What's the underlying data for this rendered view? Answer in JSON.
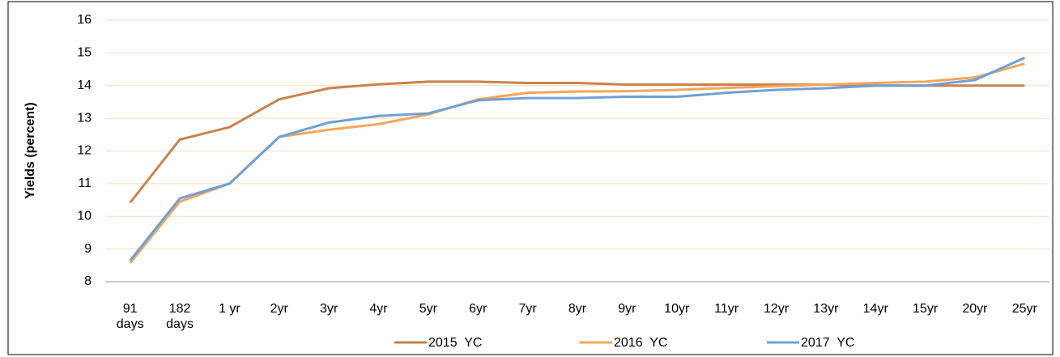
{
  "chart_data": {
    "type": "line",
    "y_label": "Yields (percent)",
    "categories": [
      "91 days",
      "182 days",
      "1 yr",
      "2yr",
      "3yr",
      "4yr",
      "5yr",
      "6yr",
      "7yr",
      "8yr",
      "9yr",
      "10yr",
      "11yr",
      "12yr",
      "13yr",
      "14yr",
      "15yr",
      "20yr",
      "25yr"
    ],
    "series": [
      {
        "name": "2015  YC",
        "color": "#c8834b",
        "values": [
          10.42,
          12.35,
          12.73,
          13.58,
          13.92,
          14.04,
          14.12,
          14.12,
          14.08,
          14.08,
          14.03,
          14.03,
          14.03,
          14.03,
          14.03,
          14.0,
          14.0,
          14.0,
          14.0
        ]
      },
      {
        "name": "2016  YC",
        "color": "#f5a65b",
        "values": [
          8.57,
          10.45,
          11.0,
          12.43,
          12.65,
          12.82,
          13.12,
          13.58,
          13.78,
          13.82,
          13.83,
          13.87,
          13.93,
          13.98,
          14.03,
          14.08,
          14.12,
          14.25,
          14.67
        ]
      },
      {
        "name": "2017  YC",
        "color": "#6fa0d6",
        "values": [
          8.65,
          10.55,
          11.0,
          12.43,
          12.87,
          13.07,
          13.15,
          13.55,
          13.62,
          13.62,
          13.66,
          13.66,
          13.78,
          13.87,
          13.92,
          14.0,
          14.0,
          14.17,
          14.85
        ]
      }
    ],
    "ylim": [
      8,
      16
    ],
    "yticks": [
      8,
      9,
      10,
      11,
      12,
      13,
      14,
      15,
      16
    ],
    "grid": true,
    "legend": "bottom"
  }
}
